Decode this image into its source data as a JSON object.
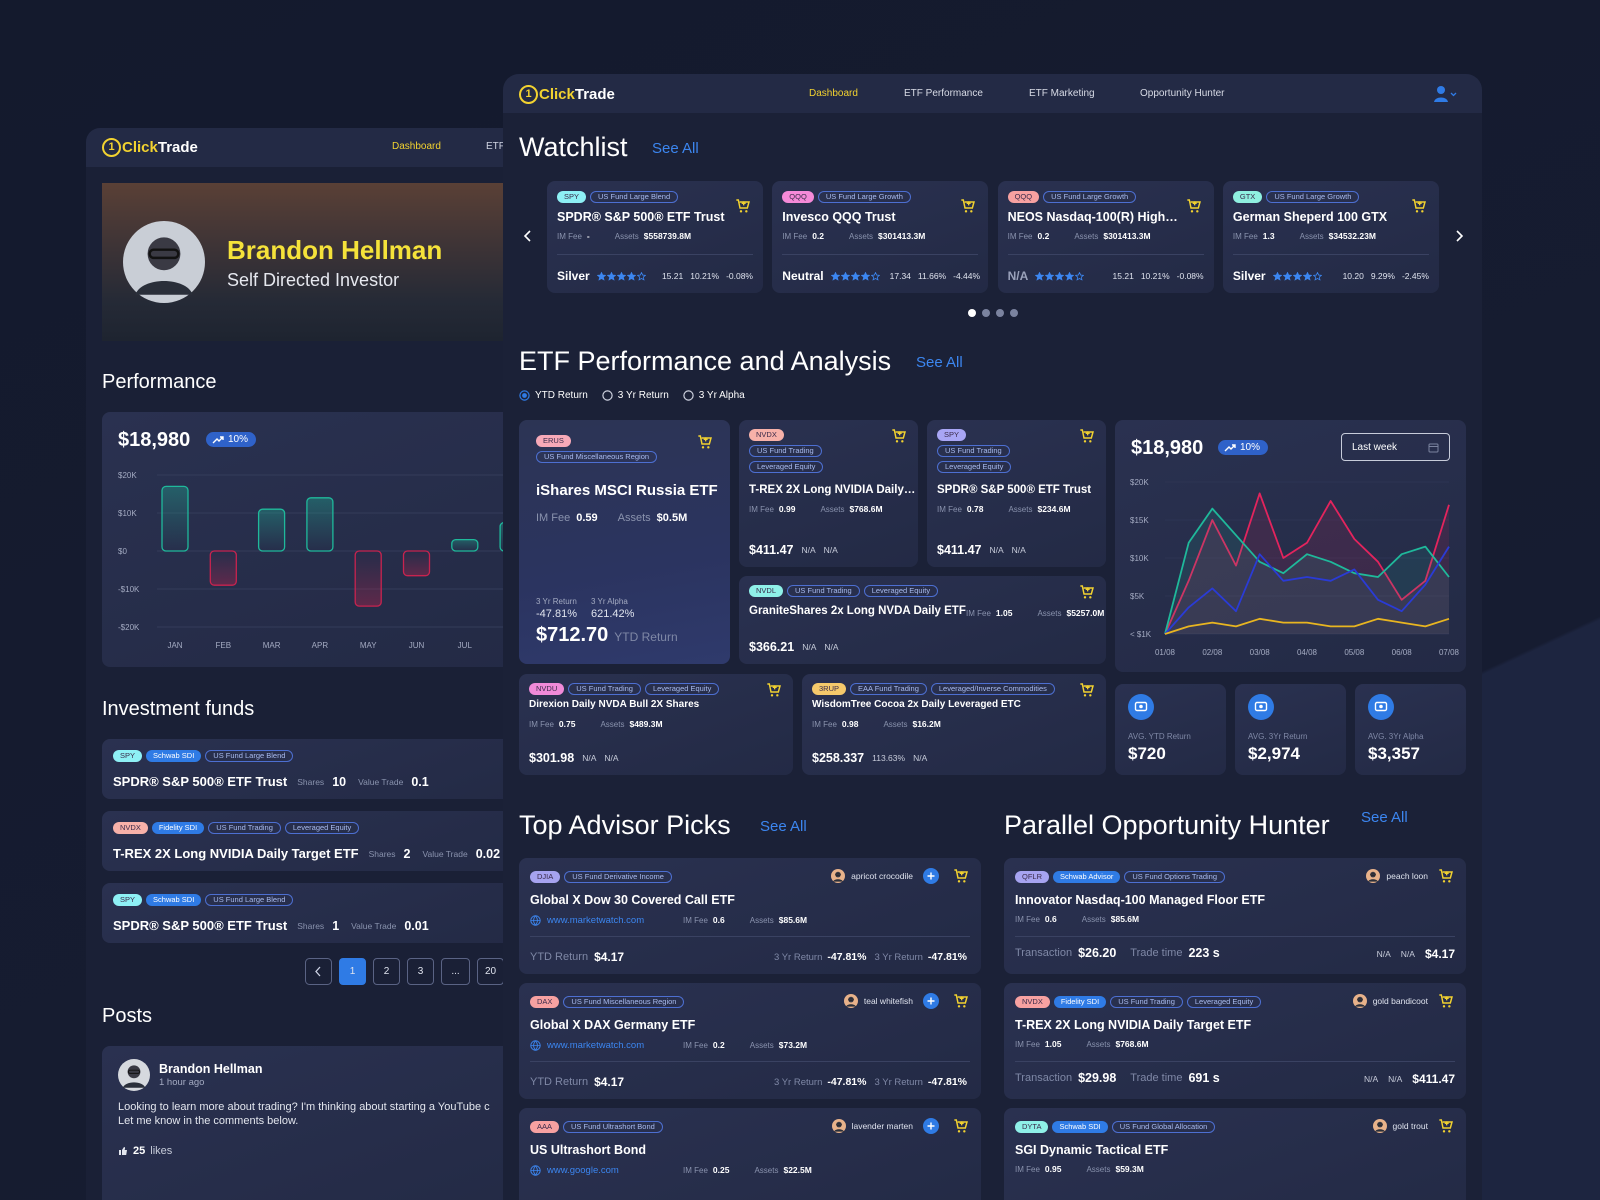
{
  "back": {
    "logo": {
      "mark": "1",
      "accent": "Click",
      "rest": "Trade"
    },
    "nav": [
      "Dashboard",
      "ETF"
    ],
    "profile": {
      "name": "Brandon Hellman",
      "role": "Self Directed Investor"
    },
    "performance": {
      "title": "Performance",
      "amount": "$18,980",
      "change": "10%",
      "chart": {
        "type": "bar",
        "categories": [
          "JAN",
          "FEB",
          "MAR",
          "APR",
          "MAY",
          "JUN",
          "JUL",
          null
        ],
        "values": [
          17000,
          -9000,
          11000,
          14000,
          -14500,
          -6500,
          3000,
          7500
        ],
        "ylim": [
          -20000,
          20000
        ],
        "yticks": [
          {
            "value": 20000,
            "label": "$20K"
          },
          {
            "value": 10000,
            "label": "$10K"
          },
          {
            "value": 0,
            "label": "$0"
          },
          {
            "value": -10000,
            "label": "-$10K"
          },
          {
            "value": -20000,
            "label": "-$20K"
          }
        ],
        "colors": {
          "positive": "#1fb99b",
          "negative": "#c8234f"
        }
      }
    },
    "funds": {
      "title": "Investment funds",
      "shares_label": "Shares",
      "value_label": "Value Trade",
      "items": [
        {
          "ticker": "SPY",
          "ticker_color": "#8ef0f5",
          "badges": [
            "Schwab SDI"
          ],
          "tags": [
            "US Fund Large Blend"
          ],
          "name": "SPDR® S&P 500® ETF Trust",
          "shares": 10,
          "value": 0.1
        },
        {
          "ticker": "NVDX",
          "ticker_color": "#f7b1a9",
          "badges": [
            "Fidelity SDI"
          ],
          "tags": [
            "US Fund Trading",
            "Leveraged Equity"
          ],
          "name": "T-REX 2X Long NVIDIA Daily Target ETF",
          "shares": 2,
          "value": 0.02
        },
        {
          "ticker": "SPY",
          "ticker_color": "#8ef0f5",
          "badges": [
            "Schwab SDI"
          ],
          "tags": [
            "US Fund Large Blend"
          ],
          "name": "SPDR® S&P 500® ETF Trust",
          "shares": 1,
          "value": 0.01
        }
      ],
      "pages": [
        1,
        2,
        3,
        "...",
        20
      ],
      "current_page": 0
    },
    "posts": {
      "title": "Posts",
      "items": [
        {
          "author": "Brandon Hellman",
          "time": "1 hour ago",
          "lines": [
            "Looking to learn more about trading? I'm thinking about starting a YouTube c",
            "Let me know in the comments below."
          ],
          "likes": 25,
          "likes_label": "likes"
        }
      ]
    }
  },
  "front": {
    "logo": {
      "mark": "1",
      "accent": "Click",
      "rest": "Trade"
    },
    "nav": [
      "Dashboard",
      "ETF Performance",
      "ETF Marketing",
      "Opportunity Hunter"
    ],
    "active_nav": 0,
    "labels": {
      "im_fee": "IM Fee",
      "assets": "Assets",
      "see_all": "See All"
    },
    "watchlist": {
      "title": "Watchlist",
      "page_dots": 4,
      "current_dot": 0,
      "cards": [
        {
          "ticker": "SPY",
          "ticker_color": "#8ef0f5",
          "tags": [
            "US Fund Large Blend"
          ],
          "name": "SPDR® S&P 500® ETF Trust",
          "fee": "-",
          "assets": "$558739.8M",
          "rating": "Silver",
          "stars": 4,
          "stats": [
            "15.21",
            "10.21%",
            "-0.08%"
          ]
        },
        {
          "ticker": "QQQ",
          "ticker_color": "#f58ad8",
          "tags": [
            "US Fund Large Growth"
          ],
          "name": "Invesco QQQ Trust",
          "fee": 0.2,
          "assets": "$301413.3M",
          "rating": "Neutral",
          "stars": 4,
          "stats": [
            "17.34",
            "11.66%",
            "-4.44%"
          ]
        },
        {
          "ticker": "QQQ",
          "ticker_color": "#f7a1a1",
          "tags": [
            "US Fund Large Growth"
          ],
          "name": "NEOS Nasdaq-100(R) High…",
          "fee": 0.2,
          "assets": "$301413.3M",
          "rating": "N/A",
          "stars": 4,
          "stats": [
            "15.21",
            "10.21%",
            "-0.08%"
          ]
        },
        {
          "ticker": "GTX",
          "ticker_color": "#8ff0e0",
          "tags": [
            "US Fund Large Growth"
          ],
          "name": "German Sheperd 100 GTX",
          "fee": 1.3,
          "assets": "$34532.23M",
          "rating": "Silver",
          "stars": 4,
          "stats": [
            "10.20",
            "9.29%",
            "-2.45%"
          ]
        }
      ]
    },
    "performance": {
      "title": "ETF Performance and Analysis",
      "filters": [
        "YTD Return",
        "3 Yr Return",
        "3 Yr Alpha"
      ],
      "selected": 0,
      "featured": {
        "ticker": "ERUS",
        "ticker_color": "#f7a9b8",
        "tags": [
          "US Fund Miscellaneous Region"
        ],
        "name": "iShares MSCI Russia ETF",
        "fee": 0.59,
        "assets": "$0.5M",
        "return_label": "3 Yr Return",
        "return": "-47.81%",
        "alpha_label": "3 Yr Alpha",
        "alpha": "621.42%",
        "price": "$712.70",
        "price_label": "YTD Return"
      },
      "cards": [
        {
          "ticker": "NVDX",
          "ticker_color": "#f7b1a9",
          "tags": [
            "US Fund Trading",
            "Leveraged Equity"
          ],
          "name": "T-REX 2X Long NVIDIA Daily…",
          "fee": 0.99,
          "assets": "$768.6M",
          "price": "$411.47",
          "stats": [
            "N/A",
            "N/A"
          ]
        },
        {
          "ticker": "SPY",
          "ticker_color": "#a9a6f5",
          "tags": [
            "US Fund Trading",
            "Leveraged Equity"
          ],
          "name": "SPDR® S&P 500® ETF Trust",
          "fee": 0.78,
          "assets": "$234.6M",
          "price": "$411.47",
          "stats": [
            "N/A",
            "N/A"
          ]
        },
        {
          "ticker": "NVDL",
          "ticker_color": "#8ff0e8",
          "tags": [
            "US Fund Trading",
            "Leveraged Equity"
          ],
          "name": "GraniteShares 2x Long NVDA Daily ETF",
          "fee": 1.05,
          "assets": "$5257.0M",
          "price": "$366.21",
          "stats": [
            "N/A",
            "N/A"
          ]
        },
        {
          "ticker": "NVDU",
          "ticker_color": "#f08ad8",
          "tags": [
            "US Fund Trading",
            "Leveraged Equity"
          ],
          "name": "Direxion Daily NVDA Bull 2X Shares",
          "fee": 0.75,
          "assets": "$489.3M",
          "price": "$301.98",
          "stats": [
            "N/A",
            "N/A"
          ]
        },
        {
          "ticker": "3RUP",
          "ticker_color": "#f5c96b",
          "tags": [
            "EAA Fund Trading",
            "Leveraged/Inverse Commodities"
          ],
          "name": "WisdomTree Cocoa 2x Daily Leveraged ETC",
          "fee": 0.98,
          "assets": "$16.2M",
          "price": "$258.337",
          "stats": [
            "113.63%",
            "N/A"
          ]
        }
      ],
      "summary": {
        "amount": "$18,980",
        "change": "10%",
        "period": "Last week"
      },
      "chart": {
        "type": "line",
        "categories": [
          "01/08",
          null,
          "02/08",
          null,
          "03/08",
          null,
          "04/08",
          null,
          "05/08",
          null,
          "06/08",
          null,
          "07/08"
        ],
        "ylim": [
          0,
          20000
        ],
        "yticks": [
          {
            "value": 20000,
            "label": "$20K"
          },
          {
            "value": 15000,
            "label": "$15K"
          },
          {
            "value": 10000,
            "label": "$10K"
          },
          {
            "value": 5000,
            "label": "$5K"
          },
          {
            "value": 0,
            "label": "< $1K"
          }
        ],
        "series": [
          {
            "color": "#e3245d",
            "values": [
              0,
              7000,
              15000,
              9000,
              18500,
              10000,
              12000,
              17500,
              12500,
              9500,
              4500,
              7000,
              17000
            ]
          },
          {
            "color": "#1fb99b",
            "values": [
              0,
              12000,
              16500,
              13000,
              9500,
              8000,
              10500,
              9500,
              8000,
              7500,
              10500,
              11500,
              7500
            ]
          },
          {
            "color": "#2a3bd6",
            "values": [
              0,
              3500,
              6000,
              3000,
              10500,
              7000,
              7500,
              7000,
              8500,
              4500,
              3000,
              6500,
              11500
            ]
          },
          {
            "color": "#e8b520",
            "values": [
              0,
              1000,
              1500,
              1000,
              2000,
              1500,
              1500,
              1000,
              1000,
              2000,
              1500,
              1000,
              2000
            ]
          }
        ]
      },
      "stats": [
        {
          "label": "AVG. YTD Return",
          "value": "$720"
        },
        {
          "label": "AVG. 3Yr Return",
          "value": "$2,974"
        },
        {
          "label": "AVG. 3Yr Alpha",
          "value": "$3,357"
        }
      ]
    },
    "advisor": {
      "title": "Top Advisor Picks",
      "ytd_label": "YTD Return",
      "return_label": "3 Yr Return",
      "cards": [
        {
          "ticker": "DJIA",
          "ticker_color": "#a6a3f0",
          "tags": [
            "US Fund Derivative Income"
          ],
          "user": "apricot crocodile",
          "name": "Global X Dow 30 Covered Call ETF",
          "link": "www.marketwatch.com",
          "fee": 0.6,
          "assets": "$85.6M",
          "ytd": "$4.17",
          "returns": [
            "-47.81%",
            "-47.81%"
          ]
        },
        {
          "ticker": "DAX",
          "ticker_color": "#f7a1a1",
          "tags": [
            "US Fund Miscellaneous Region"
          ],
          "user": "teal whitefish",
          "name": "Global X DAX Germany ETF",
          "link": "www.marketwatch.com",
          "fee": 0.2,
          "assets": "$73.2M",
          "ytd": "$4.17",
          "returns": [
            "-47.81%",
            "-47.81%"
          ]
        },
        {
          "ticker": "AAA",
          "ticker_color": "#f7a1a1",
          "tags": [
            "US Fund Ultrashort Bond"
          ],
          "user": "lavender marten",
          "name": "US Ultrashort Bond",
          "link": "www.google.com",
          "fee": 0.25,
          "assets": "$22.5M"
        }
      ]
    },
    "hunter": {
      "title": "Parallel Opportunity Hunter",
      "transaction_label": "Transaction",
      "trade_time_label": "Trade time",
      "cards": [
        {
          "ticker": "QFLR",
          "ticker_color": "#a6a3f0",
          "badges": [
            "Schwab Advisor"
          ],
          "tags": [
            "US Fund Options Trading"
          ],
          "user": "peach loon",
          "name": "Innovator Nasdaq-100 Managed Floor ETF",
          "fee": 0.6,
          "assets": "$85.6M",
          "transaction": "$26.20",
          "trade_time": "223 s",
          "stats": [
            "N/A",
            "N/A",
            "$4.17"
          ]
        },
        {
          "ticker": "NVDX",
          "ticker_color": "#f7a1a1",
          "badges": [
            "Fidelity SDI"
          ],
          "tags": [
            "US Fund Trading",
            "Leveraged Equity"
          ],
          "user": "gold bandicoot",
          "name": "T-REX 2X Long NVIDIA Daily Target ETF",
          "fee": 1.05,
          "assets": "$768.6M",
          "transaction": "$29.98",
          "trade_time": "691 s",
          "stats": [
            "N/A",
            "N/A",
            "$411.47"
          ]
        },
        {
          "ticker": "DYTA",
          "ticker_color": "#8ff0e8",
          "badges": [
            "Schwab SDI"
          ],
          "tags": [
            "US Fund Global Allocation"
          ],
          "user": "gold trout",
          "name": "SGI Dynamic Tactical ETF",
          "fee": 0.95,
          "assets": "$59.3M"
        }
      ]
    }
  }
}
